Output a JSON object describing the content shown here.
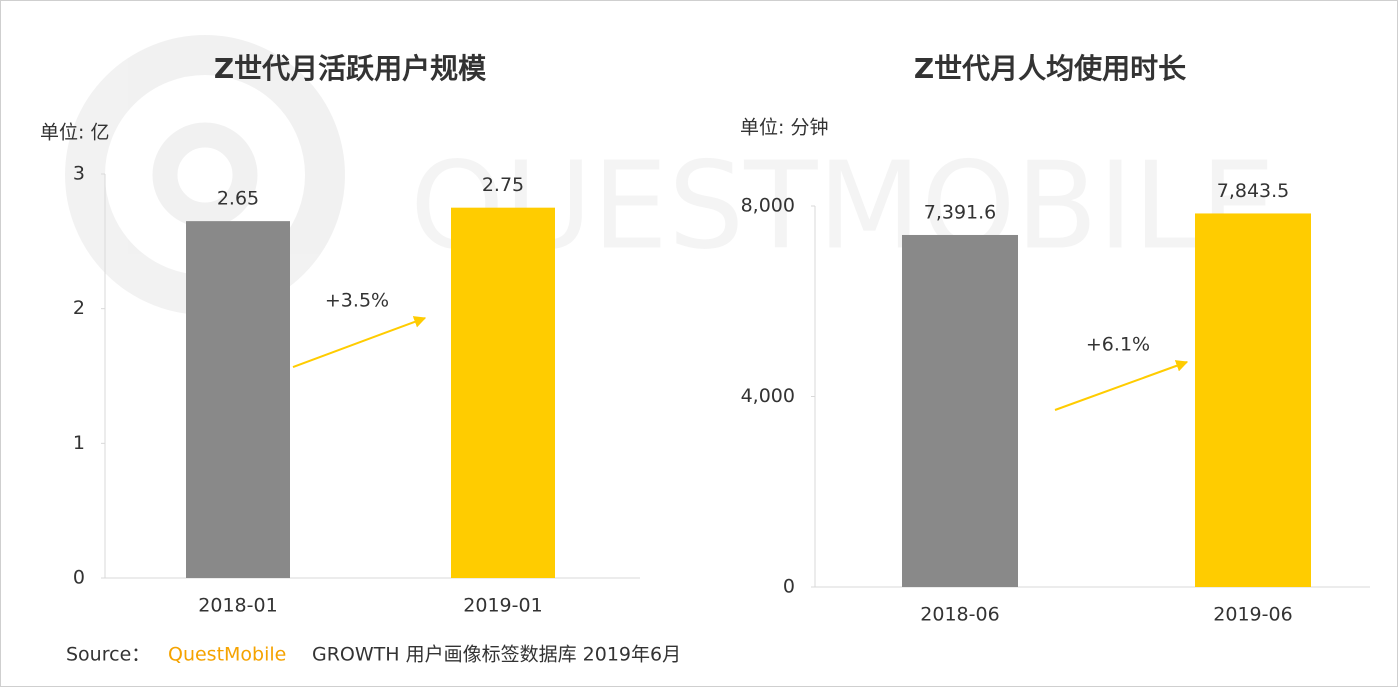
{
  "watermark": "QUESTMOBILE",
  "chart_data": [
    {
      "type": "bar",
      "title": "Z世代月活跃用户规模",
      "unit_label": "单位: 亿",
      "categories": [
        "2018-01",
        "2019-01"
      ],
      "values": [
        2.65,
        2.75
      ],
      "colors": [
        "#898989",
        "#ffcc00"
      ],
      "ylim": [
        0,
        3
      ],
      "yticks": [
        0,
        1,
        2,
        3
      ],
      "annotation": "+3.5%"
    },
    {
      "type": "bar",
      "title": "Z世代月人均使用时长",
      "unit_label": "单位: 分钟",
      "categories": [
        "2018-06",
        "2019-06"
      ],
      "values": [
        7391.6,
        7843.5
      ],
      "value_labels": [
        "7,391.6",
        "7,843.5"
      ],
      "colors": [
        "#898989",
        "#ffcc00"
      ],
      "ylim": [
        0,
        8000
      ],
      "yticks": [
        0,
        {
          "value": 4000,
          "label": "4,000"
        },
        {
          "value": 8000,
          "label": "8,000"
        }
      ],
      "annotation": "+6.1%"
    }
  ],
  "source": {
    "prefix": "Source：",
    "brand": "QuestMobile",
    "text": "GROWTH 用户画像标签数据库 2019年6月"
  }
}
